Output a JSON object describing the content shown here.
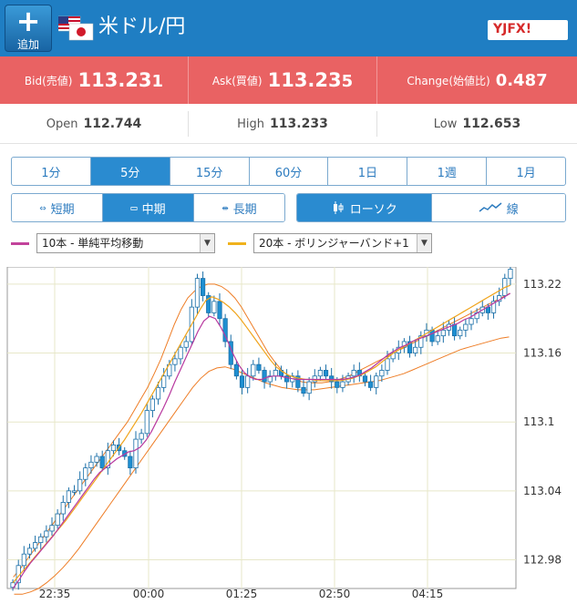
{
  "header": {
    "add_label": "追加",
    "pair_title": "米ドル/円",
    "logo_text": "YJFX!"
  },
  "quote": {
    "bid_label": "Bid(売値)",
    "bid_main": "113.23",
    "bid_tail": "1",
    "ask_label": "Ask(買値)",
    "ask_main": "113.23",
    "ask_tail": "5",
    "change_label": "Change(始値比)",
    "change_value": "0.487"
  },
  "stats": {
    "open_label": "Open",
    "open_value": "112.744",
    "high_label": "High",
    "high_main": "113.23",
    "high_tail": "3",
    "low_label": "Low",
    "low_main": "112.65",
    "low_tail": "3"
  },
  "timeframes": [
    "1分",
    "5分",
    "15分",
    "60分",
    "1日",
    "1週",
    "1月"
  ],
  "timeframe_active": 1,
  "ranges": [
    {
      "label": "短期",
      "icon": "⇔"
    },
    {
      "label": "中期",
      "icon": "▭"
    },
    {
      "label": "長期",
      "icon": "⇹"
    }
  ],
  "range_active": 1,
  "chart_types": [
    {
      "label": "ローソク",
      "icon": "candle-icon"
    },
    {
      "label": "線",
      "icon": "line-icon"
    }
  ],
  "chart_type_active": 0,
  "indicators": [
    {
      "label": "10本 - 単純平均移動",
      "color": "#c2439b"
    },
    {
      "label": "20本 - ボリンジャーバンド+1",
      "color": "#f0b21c"
    }
  ],
  "colors": {
    "header": "#1f7ec3",
    "quote_row": "#e96263",
    "candle": "#1e8fd1",
    "sma": "#b8399f",
    "bb_mid": "#f0a41c",
    "bb_band": "#ee7d26"
  },
  "chart_data": {
    "type": "candlestick",
    "x_ticks": [
      "22:35",
      "00:00",
      "01:25",
      "02:50",
      "04:15"
    ],
    "y_ticks": [
      112.98,
      113.04,
      113.1,
      113.16,
      113.22
    ],
    "ylim": [
      112.955,
      113.235
    ],
    "grid": true,
    "close": [
      112.96,
      112.975,
      112.985,
      112.99,
      112.995,
      113.0,
      113.005,
      113.01,
      113.02,
      113.03,
      113.04,
      113.04,
      113.05,
      113.06,
      113.065,
      113.07,
      113.06,
      113.075,
      113.08,
      113.075,
      113.07,
      113.06,
      113.085,
      113.09,
      113.11,
      113.12,
      113.13,
      113.14,
      113.15,
      113.155,
      113.165,
      113.17,
      113.2,
      113.225,
      113.21,
      113.195,
      113.205,
      113.19,
      113.17,
      113.15,
      113.14,
      113.13,
      113.14,
      113.15,
      113.145,
      113.135,
      113.14,
      113.145,
      113.14,
      113.135,
      113.14,
      113.13,
      113.125,
      113.135,
      113.14,
      113.145,
      113.14,
      113.135,
      113.13,
      113.135,
      113.14,
      113.145,
      113.14,
      113.135,
      113.13,
      113.14,
      113.145,
      113.155,
      113.16,
      113.165,
      113.17,
      113.16,
      113.165,
      113.175,
      113.18,
      113.17,
      113.175,
      113.18,
      113.185,
      113.175,
      113.18,
      113.185,
      113.19,
      113.195,
      113.2,
      113.195,
      113.205,
      113.21,
      113.225,
      113.233
    ],
    "sma10": [
      112.955,
      112.962,
      112.97,
      112.977,
      112.983,
      112.989,
      112.995,
      113.001,
      113.008,
      113.015,
      113.022,
      113.029,
      113.036,
      113.043,
      113.05,
      113.056,
      113.06,
      113.064,
      113.068,
      113.071,
      113.074,
      113.075,
      113.078,
      113.084,
      113.092,
      113.102,
      113.112,
      113.123,
      113.135,
      113.146,
      113.157,
      113.168,
      113.179,
      113.188,
      113.192,
      113.19,
      113.182,
      113.172,
      113.16,
      113.15,
      113.143,
      113.139,
      113.137,
      113.137,
      113.139,
      113.14,
      113.14,
      113.139,
      113.138,
      113.137,
      113.137,
      113.137,
      113.137,
      113.137,
      113.137,
      113.137,
      113.137,
      113.137,
      113.138,
      113.139,
      113.141,
      113.144,
      113.147,
      113.151,
      113.155,
      113.159,
      113.162,
      113.165,
      113.167,
      113.17,
      113.172,
      113.174,
      113.176,
      113.178,
      113.18,
      113.182,
      113.184,
      113.186,
      113.189,
      113.191,
      113.194,
      113.197,
      113.2,
      113.203,
      113.206,
      113.209,
      113.212
    ],
    "bb_mid": [
      112.96,
      112.966,
      112.972,
      112.978,
      112.984,
      112.99,
      112.996,
      113.002,
      113.008,
      113.014,
      113.021,
      113.028,
      113.035,
      113.042,
      113.049,
      113.056,
      113.063,
      113.07,
      113.077,
      113.084,
      113.092,
      113.1,
      113.108,
      113.117,
      113.126,
      113.135,
      113.144,
      113.153,
      113.162,
      113.171,
      113.18,
      113.189,
      113.198,
      113.206,
      113.209,
      113.207,
      113.204,
      113.2,
      113.195,
      113.189,
      113.182,
      113.175,
      113.168,
      113.161,
      113.154,
      113.148,
      113.144,
      113.141,
      113.139,
      113.138,
      113.137,
      113.137,
      113.136,
      113.136,
      113.136,
      113.136,
      113.136,
      113.137,
      113.138,
      113.14,
      113.142,
      113.145,
      113.148,
      113.152,
      113.156,
      113.16,
      113.163,
      113.166,
      113.169,
      113.172,
      113.175,
      113.178,
      113.181,
      113.184,
      113.187,
      113.19,
      113.193,
      113.196,
      113.199,
      113.202,
      113.205,
      113.208,
      113.211,
      113.214,
      113.217,
      113.219
    ],
    "bb_upper": [
      112.965,
      112.972,
      112.98,
      112.988,
      112.996,
      113.004,
      113.012,
      113.02,
      113.028,
      113.036,
      113.044,
      113.052,
      113.06,
      113.068,
      113.076,
      113.084,
      113.092,
      113.1,
      113.11,
      113.12,
      113.13,
      113.142,
      113.155,
      113.17,
      113.185,
      113.198,
      113.208,
      113.214,
      113.218,
      113.22,
      113.22,
      113.218,
      113.214,
      113.208,
      113.2,
      113.19,
      113.18,
      113.17,
      113.16,
      113.152,
      113.145,
      113.14,
      113.137,
      113.135,
      113.134,
      113.134,
      113.134,
      113.135,
      113.136,
      113.138,
      113.14,
      113.143,
      113.146,
      113.149,
      113.152,
      113.155,
      113.158,
      113.161,
      113.164,
      113.167,
      113.17,
      113.173,
      113.176,
      113.179,
      113.182,
      113.185,
      113.188,
      113.191,
      113.194,
      113.197,
      113.2,
      113.203,
      113.206,
      113.209,
      113.212
    ],
    "bb_lower": [
      112.95,
      112.95,
      112.952,
      112.955,
      112.96,
      112.966,
      112.973,
      112.981,
      112.99,
      113.0,
      113.01,
      113.02,
      113.03,
      113.04,
      113.05,
      113.06,
      113.07,
      113.08,
      113.09,
      113.1,
      113.11,
      113.12,
      113.13,
      113.138,
      113.144,
      113.147,
      113.148,
      113.146,
      113.143,
      113.14,
      113.137,
      113.134,
      113.132,
      113.13,
      113.129,
      113.128,
      113.128,
      113.128,
      113.129,
      113.13,
      113.131,
      113.132,
      113.133,
      113.134,
      113.135,
      113.136,
      113.138,
      113.14,
      113.142,
      113.145,
      113.148,
      113.151,
      113.154,
      113.157,
      113.16,
      113.163,
      113.165,
      113.167,
      113.169,
      113.171,
      113.173,
      113.174
    ]
  }
}
